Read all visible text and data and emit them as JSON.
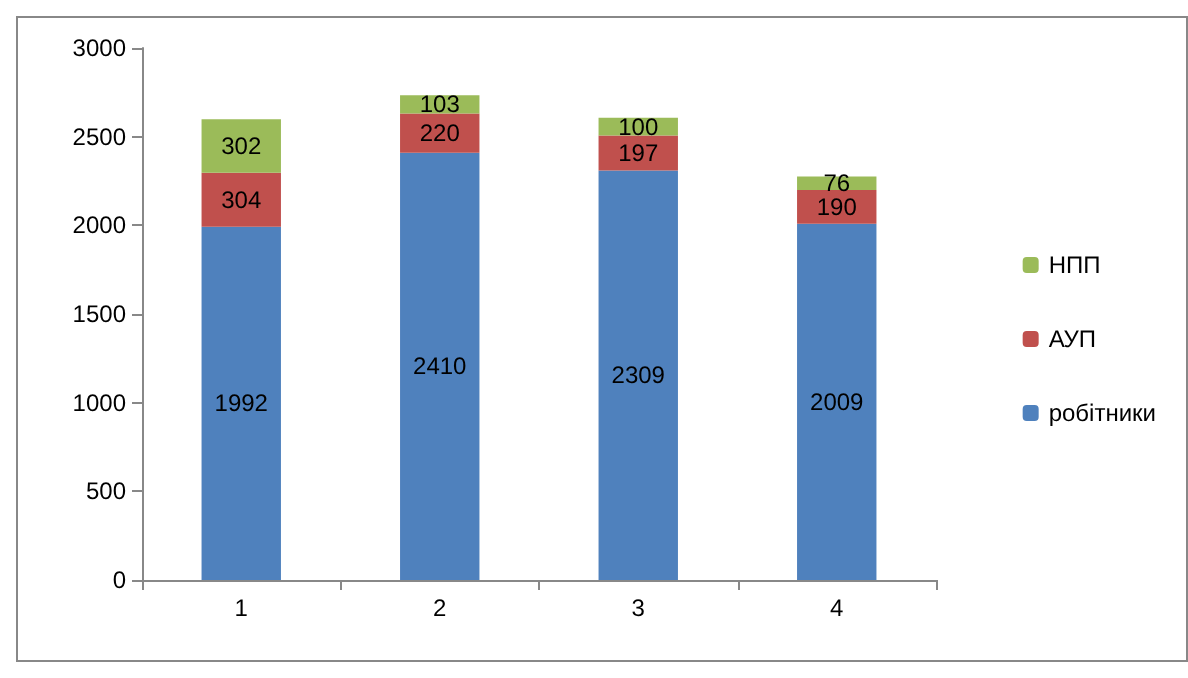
{
  "chart_data": {
    "type": "bar",
    "stacked": true,
    "categories": [
      "1",
      "2",
      "3",
      "4"
    ],
    "series": [
      {
        "name": "робітники",
        "color": "#4f81bd",
        "values": [
          1992,
          2410,
          2309,
          2009
        ]
      },
      {
        "name": "АУП",
        "color": "#c0504d",
        "values": [
          304,
          220,
          197,
          190
        ]
      },
      {
        "name": "НПП",
        "color": "#9bbb59",
        "values": [
          302,
          103,
          100,
          76
        ]
      }
    ],
    "ylim": [
      0,
      3000
    ],
    "yticks": [
      0,
      500,
      1000,
      1500,
      2000,
      2500,
      3000
    ],
    "grid": false,
    "legend": "right",
    "data_labels": true
  }
}
